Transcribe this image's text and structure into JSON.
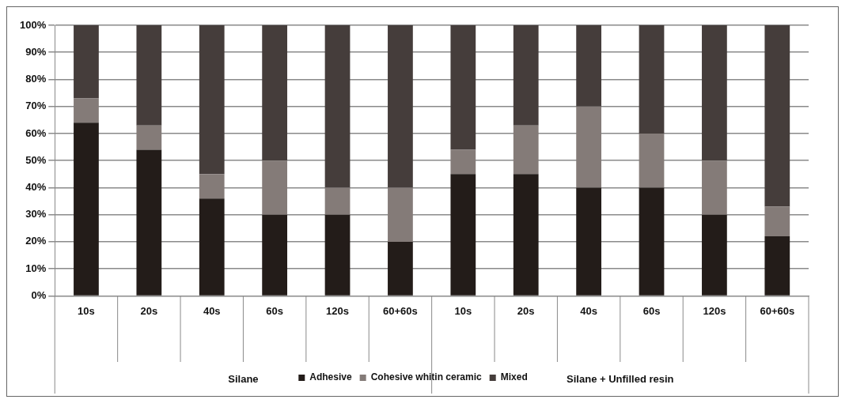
{
  "chart_data": {
    "type": "bar",
    "stacked": true,
    "categories": [
      "10s",
      "20s",
      "40s",
      "60s",
      "120s",
      "60+60s",
      "10s",
      "20s",
      "40s",
      "60s",
      "120s",
      "60+60s"
    ],
    "series": [
      {
        "name": "Adhesive",
        "color": "#231c19",
        "values": [
          64,
          54,
          36,
          30,
          30,
          20,
          45,
          45,
          40,
          40,
          30,
          22
        ]
      },
      {
        "name": "Cohesive whitin ceramic",
        "color": "#847b78",
        "values": [
          9,
          9,
          9,
          20,
          10,
          20,
          9,
          18,
          30,
          20,
          20,
          11
        ]
      },
      {
        "name": "Mixed",
        "color": "#453d3b",
        "values": [
          27,
          37,
          55,
          50,
          60,
          60,
          46,
          37,
          30,
          40,
          50,
          67
        ]
      }
    ],
    "ylim": [
      0,
      100
    ],
    "yticks": [
      {
        "value": 0,
        "label": "0%"
      },
      {
        "value": 10,
        "label": "10%"
      },
      {
        "value": 20,
        "label": "20%"
      },
      {
        "value": 30,
        "label": "30%"
      },
      {
        "value": 40,
        "label": "40%"
      },
      {
        "value": 50,
        "label": "50%"
      },
      {
        "value": 60,
        "label": "60%"
      },
      {
        "value": 70,
        "label": "70%"
      },
      {
        "value": 80,
        "label": "80%"
      },
      {
        "value": 90,
        "label": "90%"
      },
      {
        "value": 100,
        "label": "100%"
      }
    ],
    "annotations": [
      "Silane",
      "Silane + Unfilled resin"
    ],
    "grid": "y",
    "legend": "bottom"
  }
}
